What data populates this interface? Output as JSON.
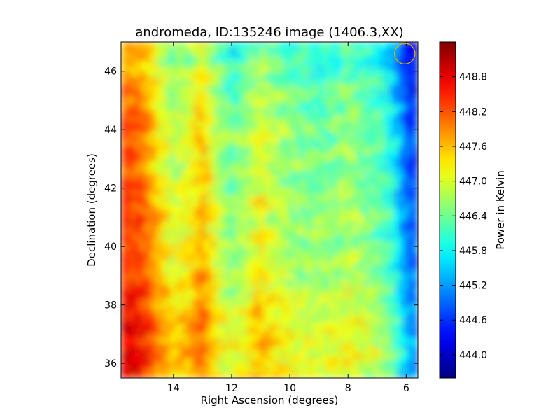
{
  "chart_data": {
    "type": "heatmap",
    "title": "andromeda, ID:135246 image (1406.3,XX)",
    "xlabel": "Right Ascension (degrees)",
    "ylabel": "Declination (degrees)",
    "colorbar_label": "Power in Kelvin",
    "x_range": [
      15.8,
      5.6
    ],
    "y_range": [
      35.5,
      47.0
    ],
    "x_ticks": [
      14,
      12,
      10,
      8,
      6
    ],
    "y_ticks": [
      36,
      38,
      40,
      42,
      44,
      46
    ],
    "x_tick_labels": [
      "14",
      "12",
      "10",
      "8",
      "6"
    ],
    "y_tick_labels": [
      "36",
      "38",
      "40",
      "42",
      "44",
      "46"
    ],
    "colorbar_range": [
      443.6,
      449.4
    ],
    "colorbar_ticks": [
      444.0,
      444.6,
      445.2,
      445.8,
      446.4,
      447.0,
      447.6,
      448.2,
      448.8
    ],
    "colorbar_tick_labels": [
      "444.0",
      "444.6",
      "445.2",
      "445.8",
      "446.4",
      "447.0",
      "447.6",
      "448.2",
      "448.8"
    ],
    "colormap": "jet",
    "ra_profile": [
      {
        "ra": 15.5,
        "power": 448.3
      },
      {
        "ra": 15.0,
        "power": 448.1
      },
      {
        "ra": 14.5,
        "power": 447.4
      },
      {
        "ra": 14.0,
        "power": 446.9
      },
      {
        "ra": 13.5,
        "power": 447.1
      },
      {
        "ra": 13.0,
        "power": 447.6
      },
      {
        "ra": 12.5,
        "power": 446.8
      },
      {
        "ra": 12.0,
        "power": 446.4
      },
      {
        "ra": 11.5,
        "power": 446.7
      },
      {
        "ra": 11.0,
        "power": 447.1
      },
      {
        "ra": 10.5,
        "power": 446.8
      },
      {
        "ra": 10.0,
        "power": 446.6
      },
      {
        "ra": 9.5,
        "power": 446.5
      },
      {
        "ra": 9.0,
        "power": 446.4
      },
      {
        "ra": 8.5,
        "power": 446.5
      },
      {
        "ra": 8.0,
        "power": 446.7
      },
      {
        "ra": 7.5,
        "power": 446.5
      },
      {
        "ra": 7.0,
        "power": 446.3
      },
      {
        "ra": 6.5,
        "power": 445.9
      },
      {
        "ra": 6.0,
        "power": 444.9
      },
      {
        "ra": 5.8,
        "power": 444.7
      }
    ],
    "dec_profile": [
      {
        "dec": 46.5,
        "offset": -0.5
      },
      {
        "dec": 45.5,
        "offset": -0.3
      },
      {
        "dec": 44.5,
        "offset": -0.1
      },
      {
        "dec": 43.5,
        "offset": 0.0
      },
      {
        "dec": 42.5,
        "offset": -0.1
      },
      {
        "dec": 41.5,
        "offset": 0.1
      },
      {
        "dec": 40.5,
        "offset": 0.1
      },
      {
        "dec": 39.5,
        "offset": 0.1
      },
      {
        "dec": 38.5,
        "offset": 0.3
      },
      {
        "dec": 37.5,
        "offset": 0.5
      },
      {
        "dec": 36.5,
        "offset": 0.6
      },
      {
        "dec": 35.8,
        "offset": 0.5
      }
    ],
    "marker": {
      "shape": "circle",
      "color": "#d4b400",
      "ra": 6.05,
      "dec": 46.6,
      "radius_deg": 0.35
    },
    "colors": {
      "frame": "#000000",
      "background": "#ffffff"
    }
  }
}
